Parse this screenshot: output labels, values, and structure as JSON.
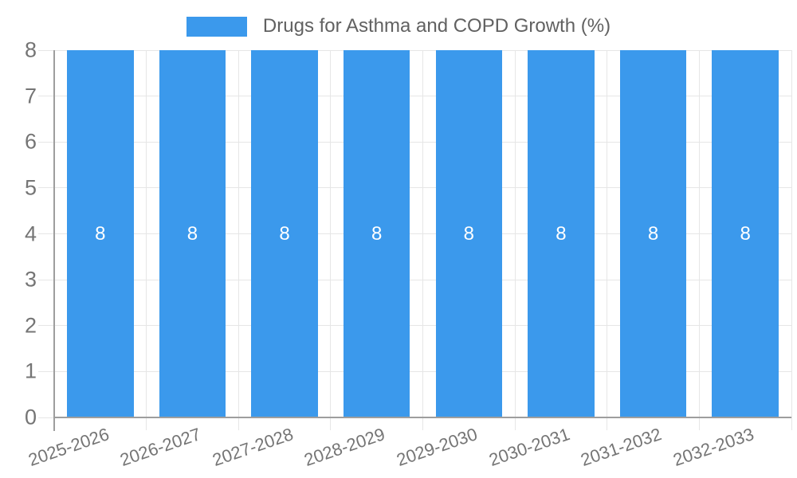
{
  "legend": {
    "label": "Drugs for Asthma and COPD Growth (%)"
  },
  "colors": {
    "bar": "#3B99EC",
    "gridline": "#E6E6E6",
    "axis_line": "#9E9E9E",
    "axis_tick_label": "#757575",
    "legend_text": "#616161",
    "bar_value_text": "#FFFFFF",
    "background": "#FFFFFF"
  },
  "chart_data": {
    "type": "bar",
    "title": "Drugs for Asthma and COPD Growth (%)",
    "categories": [
      "2025-2026",
      "2026-2027",
      "2027-2028",
      "2028-2029",
      "2029-2030",
      "2030-2031",
      "2031-2032",
      "2032-2033"
    ],
    "series": [
      {
        "name": "Drugs for Asthma and COPD Growth (%)",
        "values": [
          8,
          8,
          8,
          8,
          8,
          8,
          8,
          8
        ],
        "bar_labels": [
          "8",
          "8",
          "8",
          "8",
          "8",
          "8",
          "8",
          "8"
        ],
        "color": "#3B99EC"
      }
    ],
    "xlabel": "",
    "ylabel": "",
    "ylim": [
      0,
      8
    ],
    "yticks": [
      0,
      1,
      2,
      3,
      4,
      5,
      6,
      7,
      8
    ],
    "grid": true,
    "legend_position": "top",
    "x_tick_rotation_deg": -19,
    "value_label_position": "center-inside"
  }
}
